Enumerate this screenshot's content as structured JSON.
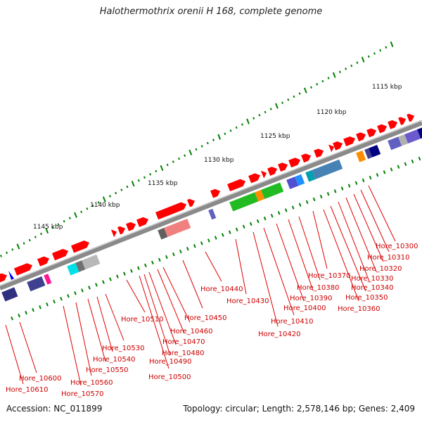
{
  "title": "Halothermothrix orenii H 168, complete genome",
  "accession": "Accession: NC_011899",
  "summary": "Topology: circular; Length: 2,578,146 bp; Genes: 2,409",
  "colors": {
    "gene_forward": "#ff0000",
    "backbone": "#808080",
    "tick": "#008000",
    "label": "#cc0000",
    "origin_marker": "#0000ff"
  },
  "scale_marks": [
    {
      "label": "1115 kbp"
    },
    {
      "label": "1120 kbp"
    },
    {
      "label": "1125 kbp"
    },
    {
      "label": "1130 kbp"
    },
    {
      "label": "1135 kbp"
    },
    {
      "label": "1140 kbp"
    },
    {
      "label": "1145 kbp"
    }
  ],
  "gene_labels": [
    "Hore_10300",
    "Hore_10310",
    "Hore_10320",
    "Hore_10330",
    "Hore_10340",
    "Hore_10350",
    "Hore_10360",
    "Hore_10370",
    "Hore_10380",
    "Hore_10390",
    "Hore_10400",
    "Hore_10410",
    "Hore_10420",
    "Hore_10430",
    "Hore_10440",
    "Hore_10450",
    "Hore_10460",
    "Hore_10470",
    "Hore_10480",
    "Hore_10490",
    "Hore_10500",
    "Hore_10510",
    "Hore_10530",
    "Hore_10540",
    "Hore_10550",
    "Hore_10560",
    "Hore_10570",
    "Hore_10600",
    "Hore_10610"
  ]
}
